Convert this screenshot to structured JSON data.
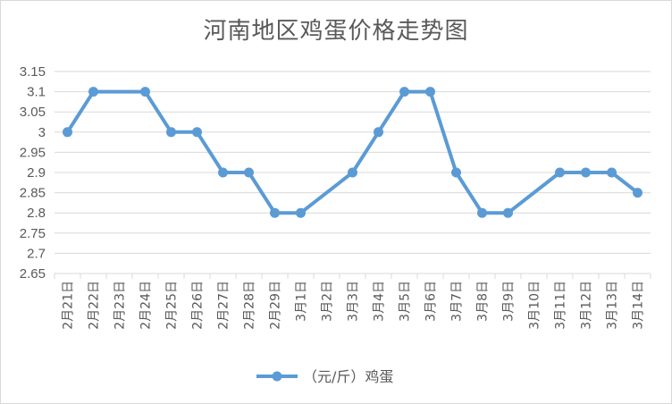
{
  "chart_data": {
    "type": "line",
    "title": "河南地区鸡蛋价格走势图",
    "xlabel": "",
    "ylabel": "",
    "ylim": [
      2.65,
      3.15
    ],
    "yticks": [
      "2.65",
      "2.7",
      "2.75",
      "2.8",
      "2.85",
      "2.9",
      "2.95",
      "3",
      "3.05",
      "3.1",
      "3.15"
    ],
    "grid": true,
    "legend_position": "bottom",
    "categories": [
      "2月21日",
      "2月22日",
      "2月23日",
      "2月24日",
      "2月25日",
      "2月26日",
      "2月27日",
      "2月28日",
      "2月29日",
      "3月1日",
      "3月2日",
      "3月3日",
      "3月4日",
      "3月5日",
      "3月6日",
      "3月7日",
      "3月8日",
      "3月9日",
      "3月10日",
      "3月11日",
      "3月12日",
      "3月13日",
      "3月14日"
    ],
    "series": [
      {
        "name": "（元/斤）鸡蛋",
        "color": "#5b9bd5",
        "points": [
          {
            "x": "2月21日",
            "y": 3.0
          },
          {
            "x": "2月22日",
            "y": 3.1
          },
          {
            "x": "2月24日",
            "y": 3.1
          },
          {
            "x": "2月25日",
            "y": 3.0
          },
          {
            "x": "2月26日",
            "y": 3.0
          },
          {
            "x": "2月27日",
            "y": 2.9
          },
          {
            "x": "2月28日",
            "y": 2.9
          },
          {
            "x": "2月29日",
            "y": 2.8
          },
          {
            "x": "3月1日",
            "y": 2.8
          },
          {
            "x": "3月3日",
            "y": 2.9
          },
          {
            "x": "3月4日",
            "y": 3.0
          },
          {
            "x": "3月5日",
            "y": 3.1
          },
          {
            "x": "3月6日",
            "y": 3.1
          },
          {
            "x": "3月7日",
            "y": 2.9
          },
          {
            "x": "3月8日",
            "y": 2.8
          },
          {
            "x": "3月9日",
            "y": 2.8
          },
          {
            "x": "3月11日",
            "y": 2.9
          },
          {
            "x": "3月12日",
            "y": 2.9
          },
          {
            "x": "3月13日",
            "y": 2.9
          },
          {
            "x": "3月14日",
            "y": 2.85
          }
        ]
      }
    ]
  }
}
